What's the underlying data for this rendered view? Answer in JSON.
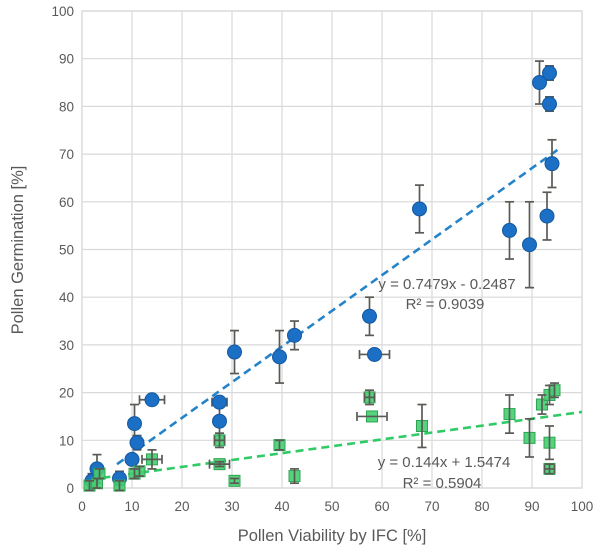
{
  "chart_data": {
    "type": "scatter",
    "title": "",
    "xlabel": "Pollen Viability by IFC [%]",
    "ylabel": "Pollen Germination [%]",
    "xlim": [
      0,
      100
    ],
    "ylim": [
      0,
      100
    ],
    "x_ticks": [
      0,
      10,
      20,
      30,
      40,
      50,
      60,
      70,
      80,
      90,
      100
    ],
    "y_ticks": [
      0,
      10,
      20,
      30,
      40,
      50,
      60,
      70,
      80,
      90,
      100
    ],
    "grid": true,
    "legend": "none",
    "colors": {
      "blue_marker": "#1b6fc4",
      "blue_marker_edge": "#15599e",
      "blue_trendline": "#2583c8",
      "green_marker": "#44ce6f",
      "green_marker_edge": "#2fa455",
      "green_trendline": "#2fcb66",
      "error_bar": "#5a5a55",
      "grid_line": "#d9d9d9",
      "axis_text": "#595959"
    },
    "series": [
      {
        "name": "pollen-germination-blue",
        "marker": "circle",
        "points": [
          {
            "x": 2,
            "y": 1.5,
            "yerr": 1.5
          },
          {
            "x": 3,
            "y": 4,
            "yerr": 3
          },
          {
            "x": 7.5,
            "y": 2,
            "yerr": 1.5
          },
          {
            "x": 10,
            "y": 6,
            "yerr": 1
          },
          {
            "x": 11,
            "y": 9.5,
            "yerr": 1.5
          },
          {
            "x": 10.5,
            "y": 13.5,
            "yerr": 4
          },
          {
            "x": 14,
            "y": 18.5,
            "yerr": 1,
            "xerr": 2.5
          },
          {
            "x": 27.5,
            "y": 18,
            "yerr": 1,
            "xerr": 1.5
          },
          {
            "x": 27.5,
            "y": 14,
            "yerr": 3
          },
          {
            "x": 30.5,
            "y": 28.5,
            "yerr": 4.5
          },
          {
            "x": 39.5,
            "y": 27.5,
            "yerr": 5.5
          },
          {
            "x": 42.5,
            "y": 32,
            "yerr": 3
          },
          {
            "x": 57.5,
            "y": 36,
            "yerr": 4
          },
          {
            "x": 58.5,
            "y": 28,
            "xerr": 3
          },
          {
            "x": 67.5,
            "y": 58.5,
            "yerr": 5
          },
          {
            "x": 85.5,
            "y": 54,
            "yerr": 6
          },
          {
            "x": 89.5,
            "y": 51,
            "yerr": 9
          },
          {
            "x": 91.5,
            "y": 85,
            "yerr": 4.5
          },
          {
            "x": 93.5,
            "y": 87,
            "yerr": 1.5
          },
          {
            "x": 93.5,
            "y": 80.5,
            "yerr": 1.5
          },
          {
            "x": 94,
            "y": 68,
            "yerr": 5
          },
          {
            "x": 93,
            "y": 57,
            "yerr": 5
          }
        ]
      },
      {
        "name": "pollen-germination-green",
        "marker": "square",
        "points": [
          {
            "x": 1.5,
            "y": 0.5,
            "yerr": 1
          },
          {
            "x": 3,
            "y": 1,
            "yerr": 1
          },
          {
            "x": 3.5,
            "y": 3,
            "yerr": 1
          },
          {
            "x": 7.5,
            "y": 0.5,
            "yerr": 1
          },
          {
            "x": 10.5,
            "y": 3,
            "yerr": 1
          },
          {
            "x": 11.5,
            "y": 3.5,
            "yerr": 1
          },
          {
            "x": 14,
            "y": 6,
            "yerr": 2,
            "xerr": 2
          },
          {
            "x": 27.5,
            "y": 10,
            "yerr": 1.5,
            "xerr": 1
          },
          {
            "x": 27.5,
            "y": 5,
            "yerr": 0.5,
            "xerr": 2
          },
          {
            "x": 30.5,
            "y": 1.5,
            "yerr": 0.5
          },
          {
            "x": 39.5,
            "y": 9,
            "yerr": 1
          },
          {
            "x": 42.5,
            "y": 2.5,
            "yerr": 1.5
          },
          {
            "x": 57.5,
            "y": 19,
            "yerr": 1.5,
            "xerr": 1
          },
          {
            "x": 58,
            "y": 15,
            "xerr": 3
          },
          {
            "x": 68,
            "y": 13,
            "yerr": 4.5
          },
          {
            "x": 85.5,
            "y": 15.5,
            "yerr": 4
          },
          {
            "x": 89.5,
            "y": 10.5,
            "yerr": 4
          },
          {
            "x": 92,
            "y": 17.5,
            "yerr": 2
          },
          {
            "x": 93.5,
            "y": 19.5,
            "yerr": 2
          },
          {
            "x": 94.5,
            "y": 20.5,
            "yerr": 1.5
          },
          {
            "x": 93.5,
            "y": 9.5,
            "yerr": 3.5
          },
          {
            "x": 93.5,
            "y": 4,
            "yerr": 1,
            "xerr": 1
          }
        ]
      }
    ],
    "trendlines": [
      {
        "series": "pollen-germination-blue",
        "equation": "y = 0.7479x - 0.2487",
        "r_squared": "R² = 0.9039",
        "slope": 0.7479,
        "intercept": -0.2487,
        "x_start": 7,
        "x_end": 95.5
      },
      {
        "series": "pollen-germination-green",
        "equation": "y = 0.144x + 1.5474",
        "r_squared": "R² = 0.5904",
        "slope": 0.144,
        "intercept": 1.5474,
        "x_start": 1.5,
        "x_end": 100
      }
    ]
  }
}
